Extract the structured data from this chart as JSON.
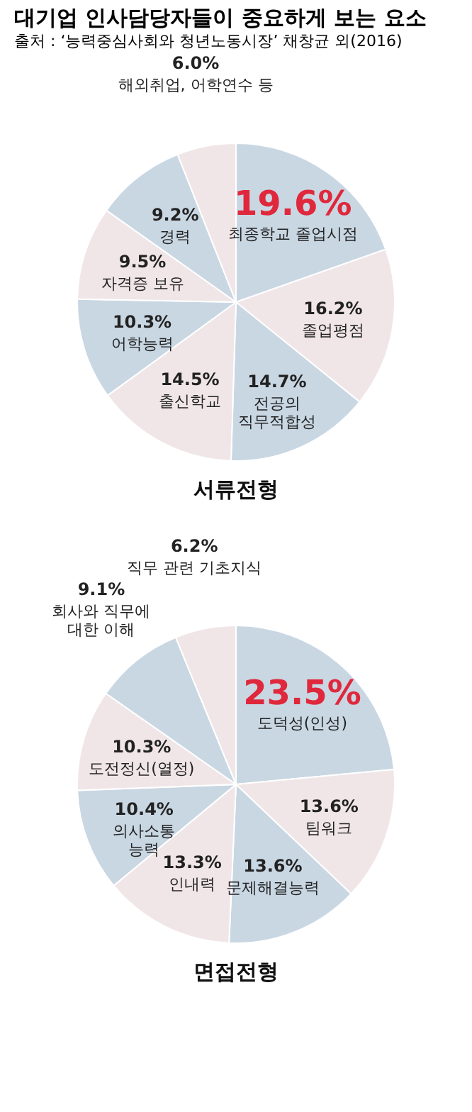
{
  "chart_data": [
    {
      "type": "pie",
      "title": "대기업 인사담당자들이 중요하게 보는 요소",
      "subtitle": "출처 : ‘능력중심사회와 청년노동시장’ 채창균 외(2016)",
      "xlabel": "서류전형",
      "categories": [
        "최종학교 졸업시점",
        "졸업평점",
        "전공의\n직무적합성",
        "출신학교",
        "어학능력",
        "자격증 보유",
        "경력",
        "해외취업, 어학연수 등"
      ],
      "values": [
        19.6,
        16.2,
        14.7,
        14.5,
        10.3,
        9.5,
        9.2,
        6.0
      ],
      "value_labels": [
        "19.6%",
        "16.2%",
        "14.7%",
        "14.5%",
        "10.3%",
        "9.5%",
        "9.2%",
        "6.0%"
      ],
      "colors": [
        "#c9d7e3",
        "#f0e6e8",
        "#c9d7e3",
        "#f0e6e8",
        "#c9d7e3",
        "#f0e6e8",
        "#c9d7e3",
        "#f0e6e8"
      ]
    },
    {
      "type": "pie",
      "xlabel": "면접전형",
      "categories": [
        "도덕성(인성)",
        "팀워크",
        "문제해결능력",
        "인내력",
        "의사소통\n능력",
        "도전정신(열정)",
        "회사와 직무에\n대한 이해",
        "직무 관련 기초지식"
      ],
      "values": [
        23.5,
        13.6,
        13.6,
        13.3,
        10.4,
        10.3,
        9.1,
        6.2
      ],
      "value_labels": [
        "23.5%",
        "13.6%",
        "13.6%",
        "13.3%",
        "10.4%",
        "10.3%",
        "9.1%",
        "6.2%"
      ],
      "colors": [
        "#c9d7e3",
        "#f0e6e8",
        "#c9d7e3",
        "#f0e6e8",
        "#c9d7e3",
        "#f0e6e8",
        "#c9d7e3",
        "#f0e6e8"
      ]
    }
  ]
}
